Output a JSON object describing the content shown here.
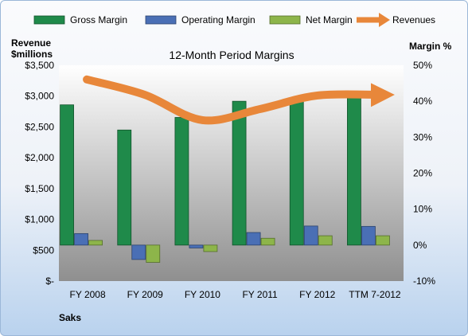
{
  "chart_data": {
    "type": "bar",
    "title": "12-Month Period Margins",
    "ylabel_left_line1": "Revenue",
    "ylabel_left_line2": "$millions",
    "ylabel_right": "Margin %",
    "company": "Saks",
    "categories": [
      "FY 2008",
      "FY 2009",
      "FY 2010",
      "FY 2011",
      "FY 2012",
      "TTM 7-2012"
    ],
    "y_left": {
      "min": 0,
      "max": 3500,
      "step": 500,
      "tick_labels": [
        "$-",
        "$500",
        "$1,000",
        "$1,500",
        "$2,000",
        "$2,500",
        "$3,000",
        "$3,500"
      ]
    },
    "y_right": {
      "min": -10,
      "max": 50,
      "step": 10,
      "tick_labels": [
        "-10%",
        "0%",
        "10%",
        "20%",
        "30%",
        "40%",
        "50%"
      ]
    },
    "series": [
      {
        "name": "Gross Margin",
        "axis": "right",
        "kind": "bar",
        "color": "#1f8a4a",
        "values": [
          39,
          32,
          35.5,
          40,
          41,
          41
        ]
      },
      {
        "name": "Operating Margin",
        "axis": "right",
        "kind": "bar",
        "color": "#4a6fb5",
        "values": [
          3.2,
          -4,
          -0.8,
          3.5,
          5.3,
          5.2
        ]
      },
      {
        "name": "Net Margin",
        "axis": "right",
        "kind": "bar",
        "color": "#8db54a",
        "values": [
          1.3,
          -4.8,
          -1.8,
          1.9,
          2.6,
          2.6
        ]
      },
      {
        "name": "Revenues",
        "axis": "left",
        "kind": "line",
        "color": "#e8873a",
        "values": [
          3270,
          3020,
          2610,
          2790,
          3010,
          3020
        ]
      }
    ],
    "legend_position": "top",
    "grid": false
  }
}
